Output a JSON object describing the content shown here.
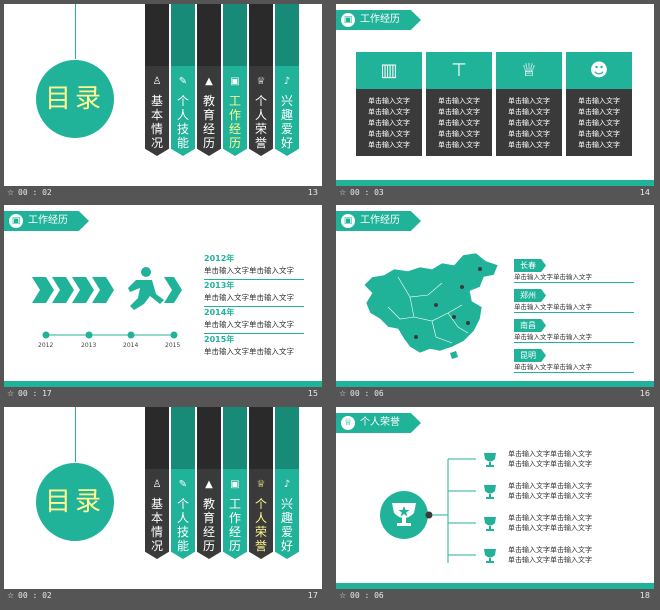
{
  "colors": {
    "accent": "#21b39a",
    "dark": "#3a3a3a",
    "highlight": "#fff98f",
    "background": "#555555"
  },
  "slides": [
    {
      "time": "00 : 02",
      "num": "13",
      "toc_title": "目录",
      "items": [
        {
          "label": "基本情况",
          "icon": "person-icon"
        },
        {
          "label": "个人技能",
          "icon": "skill-icon"
        },
        {
          "label": "教育经历",
          "icon": "graduation-cap-icon"
        },
        {
          "label": "工作经历",
          "icon": "briefcase-icon"
        },
        {
          "label": "个人荣誉",
          "icon": "trophy-icon"
        },
        {
          "label": "兴趣爱好",
          "icon": "hobby-icon"
        }
      ]
    },
    {
      "time": "00 : 03",
      "num": "14",
      "header": "工作经历",
      "cards": [
        {
          "icon": "building-icon",
          "lines": [
            "单击输入文字",
            "单击输入文字",
            "单击输入文字",
            "单击输入文字",
            "单击输入文字"
          ]
        },
        {
          "icon": "signpost-icon",
          "lines": [
            "单击输入文字",
            "单击输入文字",
            "单击输入文字",
            "单击输入文字",
            "单击输入文字"
          ]
        },
        {
          "icon": "trophy-icon",
          "lines": [
            "单击输入文字",
            "单击输入文字",
            "单击输入文字",
            "单击输入文字",
            "单击输入文字"
          ]
        },
        {
          "icon": "team-icon",
          "lines": [
            "单击输入文字",
            "单击输入文字",
            "单击输入文字",
            "单击输入文字",
            "单击输入文字"
          ]
        }
      ]
    },
    {
      "time": "00 : 17",
      "num": "15",
      "header": "工作经历",
      "years": [
        "2012",
        "2013",
        "2014",
        "2015"
      ],
      "entries": [
        {
          "year": "2012年",
          "text": "单击输入文字单击输入文字"
        },
        {
          "year": "2013年",
          "text": "单击输入文字单击输入文字"
        },
        {
          "year": "2014年",
          "text": "单击输入文字单击输入文字"
        },
        {
          "year": "2015年",
          "text": "单击输入文字单击输入文字"
        }
      ]
    },
    {
      "time": "00 : 06",
      "num": "16",
      "header": "工作经历",
      "cities": [
        {
          "name": "长春",
          "text": "单击输入文字单击输入文字"
        },
        {
          "name": "郑州",
          "text": "单击输入文字单击输入文字"
        },
        {
          "name": "南昌",
          "text": "单击输入文字单击输入文字"
        },
        {
          "name": "昆明",
          "text": "单击输入文字单击输入文字"
        }
      ]
    },
    {
      "time": "00 : 02",
      "num": "17",
      "toc_title": "目录",
      "items": [
        {
          "label": "基本情况",
          "icon": "person-icon"
        },
        {
          "label": "个人技能",
          "icon": "skill-icon"
        },
        {
          "label": "教育经历",
          "icon": "graduation-cap-icon"
        },
        {
          "label": "工作经历",
          "icon": "briefcase-icon"
        },
        {
          "label": "个人荣誉",
          "icon": "trophy-icon"
        },
        {
          "label": "兴趣爱好",
          "icon": "hobby-icon"
        }
      ]
    },
    {
      "time": "00 : 06",
      "num": "18",
      "header": "个人荣誉",
      "awards": [
        {
          "line1": "单击输入文字单击输入文字",
          "line2": "单击输入文字单击输入文字"
        },
        {
          "line1": "单击输入文字单击输入文字",
          "line2": "单击输入文字单击输入文字"
        },
        {
          "line1": "单击输入文字单击输入文字",
          "line2": "单击输入文字单击输入文字"
        },
        {
          "line1": "单击输入文字单击输入文字",
          "line2": "单击输入文字单击输入文字"
        }
      ]
    }
  ]
}
